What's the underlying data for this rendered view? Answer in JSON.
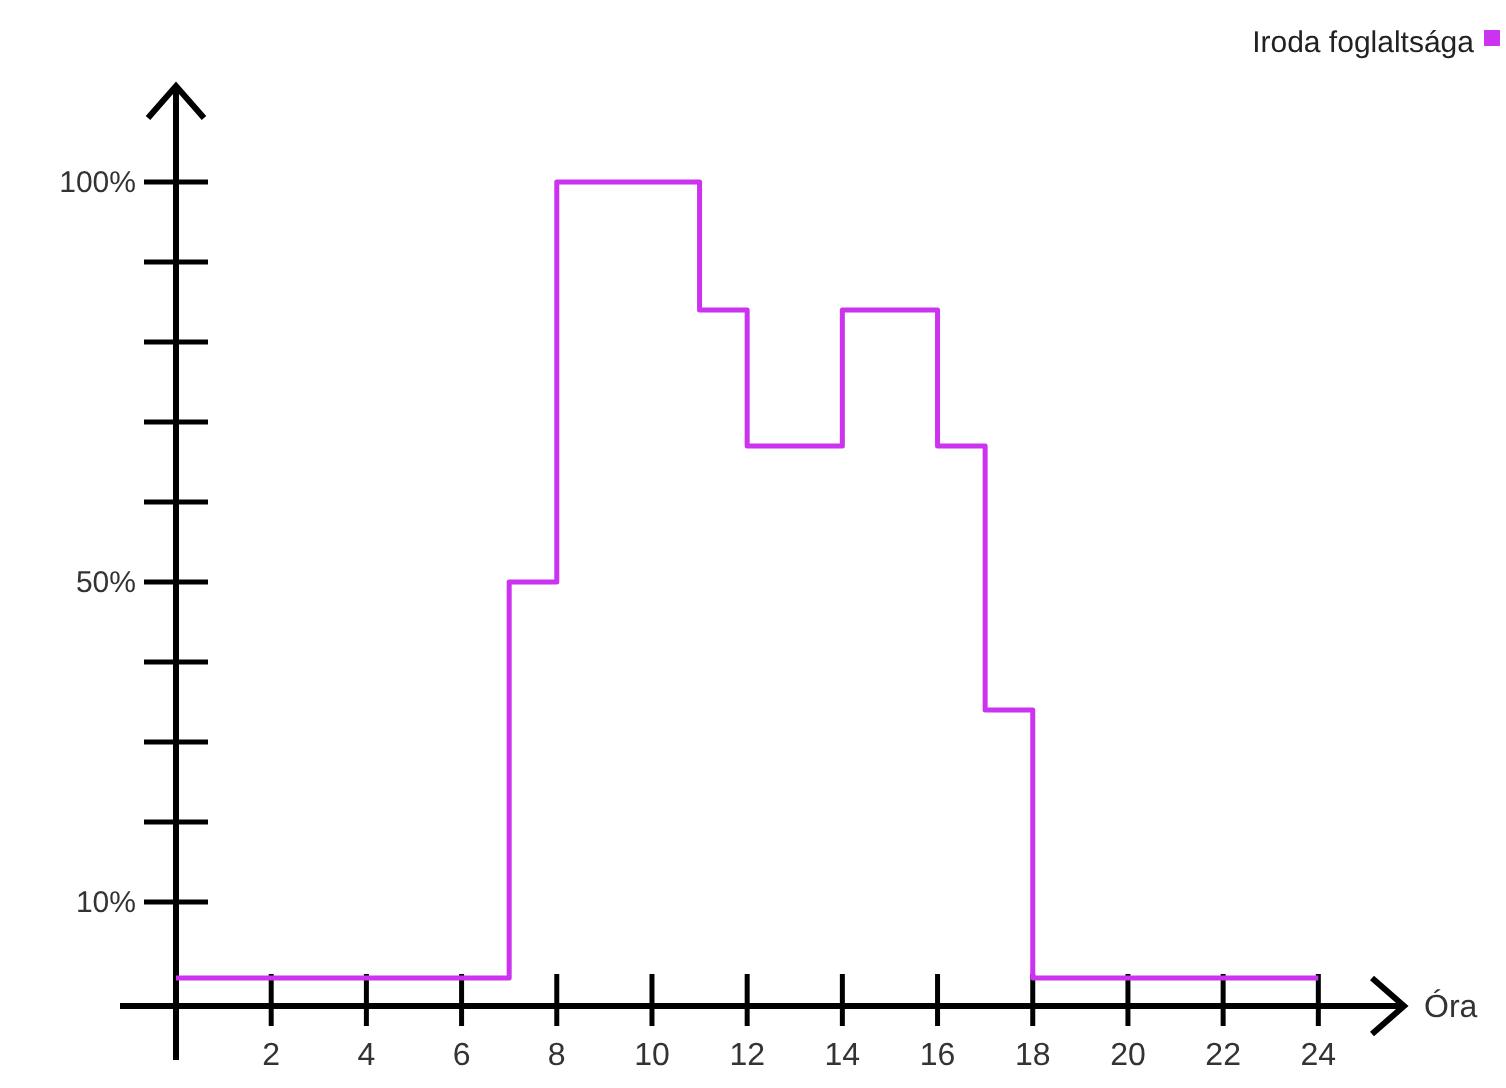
{
  "chart_data": {
    "type": "step",
    "xlabel": "Óra",
    "legend": "top right",
    "x": [
      0,
      7,
      8,
      11,
      12,
      14,
      16,
      17,
      18,
      24
    ],
    "series": [
      {
        "name": "Iroda foglaltsága",
        "color": "#cc33ee",
        "values": [
          0.5,
          50,
          100,
          84,
          67,
          84,
          67,
          34,
          0.5,
          0.5
        ]
      }
    ],
    "xlim": [
      0,
      25.8
    ],
    "ylim": [
      -3,
      112
    ],
    "xticks": [
      2,
      4,
      6,
      8,
      10,
      12,
      14,
      16,
      18,
      20,
      22,
      24
    ],
    "yticks": [
      {
        "value": 10,
        "label": "10%"
      },
      {
        "value": 20,
        "label": null
      },
      {
        "value": 30,
        "label": null
      },
      {
        "value": 40,
        "label": null
      },
      {
        "value": 50,
        "label": "50%"
      },
      {
        "value": 60,
        "label": null
      },
      {
        "value": 70,
        "label": null
      },
      {
        "value": 80,
        "label": null
      },
      {
        "value": 90,
        "label": null
      },
      {
        "value": 100,
        "label": "100%"
      }
    ]
  }
}
